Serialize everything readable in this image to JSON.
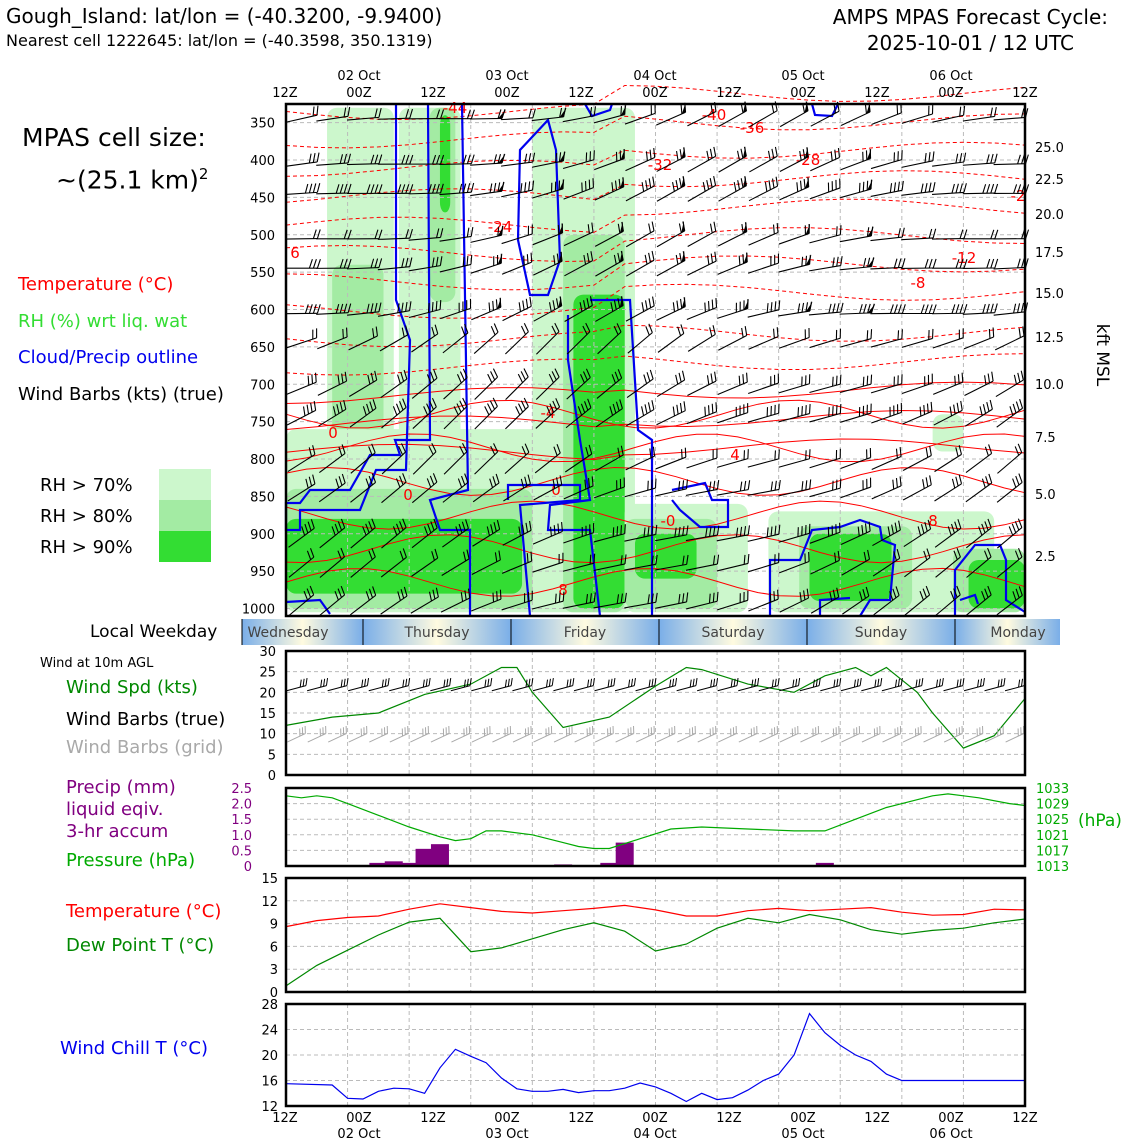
{
  "header": {
    "station_title": "Gough_Island: lat/lon = (-40.3200, -9.9400)",
    "nearest_cell": "Nearest cell 1222645: lat/lon = (-40.3598, 350.1319)",
    "cycle_line1": "AMPS MPAS Forecast Cycle:",
    "cycle_line2": "2025-10-01 / 12 UTC"
  },
  "left_panel": {
    "cell_size_line1": "MPAS cell size:",
    "cell_size_line2": "~(25.1 km)",
    "cell_size_sup": "2",
    "legend": {
      "temperature": "Temperature (°C)",
      "rh": "RH (%) wrt liq. wat",
      "cloud": "Cloud/Precip outline",
      "wind": "Wind Barbs (kts) (true)"
    },
    "rh_thresholds": [
      "RH > 70%",
      "RH > 80%",
      "RH > 90%"
    ],
    "weekday_label": "Local Weekday",
    "wind10_header": "Wind at 10m AGL",
    "wind_speed": "Wind Spd (kts)",
    "wind_barbs_true": "Wind Barbs (true)",
    "wind_barbs_grid": "Wind Barbs (grid)",
    "precip1": "Precip (mm)",
    "precip2": "liquid eqiv.",
    "precip3": "3-hr accum",
    "pressure": "Pressure (hPa)",
    "temp2": "Temperature (°C)",
    "dewpoint": "Dew Point T (°C)",
    "windchill": "Wind Chill T (°C)"
  },
  "colors": {
    "temperature": "#ff0000",
    "rh_label": "#33dd33",
    "rh70": "#ccf7cc",
    "rh80": "#a3eba3",
    "rh90": "#33dd33",
    "cloud": "#0000ee",
    "precip": "#800080",
    "pressure": "#00aa00",
    "dewpoint": "#008800",
    "windchill": "#0000ee",
    "grid_barb": "#a9a9a9"
  },
  "chart_data": [
    {
      "type": "heatmap",
      "name": "time-height cross section",
      "y_axis_label_right": "kft MSL",
      "y_ticks_hPa": [
        "350",
        "400",
        "450",
        "500",
        "550",
        "600",
        "650",
        "700",
        "750",
        "800",
        "850",
        "900",
        "950",
        "1000"
      ],
      "y_ticks_kft": [
        "25.0",
        "22.5",
        "20.0",
        "17.5",
        "15.0",
        "12.5",
        "10.0",
        "7.5",
        "5.0",
        "2.5"
      ],
      "top_ticks": [
        "12Z",
        "00Z",
        "12Z",
        "00Z",
        "12Z",
        "00Z",
        "12Z",
        "00Z",
        "12Z",
        "00Z",
        "12Z"
      ],
      "top_dates": [
        "02 Oct",
        "03 Oct",
        "04 Oct",
        "05 Oct",
        "06 Oct"
      ],
      "temperature_contour_labels": [
        "-44",
        "-40",
        "-36",
        "-32",
        "-28",
        "-24",
        "-12",
        "-8",
        "-4",
        "6",
        "4",
        "0",
        "0",
        "0",
        "-0",
        "8",
        "8",
        "-2"
      ]
    },
    {
      "type": "table",
      "name": "local weekday",
      "days": [
        "Wednesday",
        "Thursday",
        "Friday",
        "Saturday",
        "Sunday",
        "Monday"
      ]
    },
    {
      "type": "line",
      "name": "10m wind speed",
      "ylim": [
        0,
        30
      ],
      "y_ticks": [
        "0",
        "5",
        "10",
        "15",
        "20",
        "25",
        "30"
      ],
      "x_hours": [
        0,
        9,
        18,
        27,
        36,
        42,
        45,
        48,
        54,
        63,
        72,
        78,
        81,
        90,
        99,
        105,
        111,
        114,
        117,
        123,
        126,
        132,
        138,
        144
      ],
      "values": [
        12,
        14,
        15,
        19.5,
        22,
        26,
        26,
        20,
        11.5,
        14,
        21.5,
        26,
        25.5,
        22,
        20,
        24,
        26,
        24,
        26,
        20,
        15,
        6.5,
        9.5,
        18.5
      ]
    },
    {
      "type": "bar",
      "name": "precip 3-hr accum",
      "ylabel": "Precip (mm)",
      "ylim": [
        0,
        2.5
      ],
      "y_ticks": [
        "0",
        "0.5",
        "1.0",
        "1.5",
        "2.0",
        "2.5"
      ],
      "x_hours": [
        18,
        21,
        24,
        27,
        30,
        33,
        54,
        63,
        66,
        105
      ],
      "values": [
        0.1,
        0.15,
        0.1,
        0.55,
        0.7,
        0.0,
        0.05,
        0.1,
        0.75,
        0.1
      ]
    },
    {
      "type": "line",
      "name": "surface pressure",
      "ylabel": "(hPa)",
      "ylim": [
        1013,
        1033
      ],
      "y_ticks": [
        "1013",
        "1017",
        "1021",
        "1025",
        "1029",
        "1033"
      ],
      "x_hours": [
        0,
        3,
        6,
        9,
        12,
        18,
        24,
        30,
        33,
        36,
        39,
        42,
        48,
        54,
        57,
        60,
        63,
        69,
        75,
        81,
        90,
        99,
        102,
        105,
        111,
        117,
        123,
        126,
        129,
        132,
        135,
        141,
        144
      ],
      "values": [
        1031,
        1030.5,
        1031,
        1030.5,
        1029,
        1026,
        1023,
        1020.5,
        1019.5,
        1020,
        1022,
        1022,
        1021,
        1019,
        1018,
        1017.5,
        1017.5,
        1020,
        1022.5,
        1023,
        1022.5,
        1022,
        1022,
        1022,
        1025,
        1028,
        1030,
        1031,
        1031.5,
        1031,
        1030.5,
        1029,
        1028.5
      ]
    },
    {
      "type": "line",
      "name": "temperature and dew point",
      "ylim": [
        0,
        15
      ],
      "y_ticks": [
        "0",
        "3",
        "6",
        "9",
        "12"
      ],
      "x_hours": [
        0,
        6,
        12,
        18,
        24,
        30,
        36,
        42,
        48,
        54,
        60,
        66,
        72,
        78,
        84,
        90,
        96,
        102,
        108,
        114,
        120,
        126,
        132,
        138,
        144
      ],
      "series": [
        {
          "name": "Temperature (°C)",
          "values": [
            8.6,
            9.4,
            9.8,
            10.0,
            10.9,
            11.6,
            11.1,
            10.6,
            10.4,
            10.7,
            11.0,
            11.4,
            10.8,
            10.0,
            10.0,
            10.7,
            11.0,
            10.7,
            10.9,
            11.1,
            10.5,
            10.1,
            10.2,
            10.9,
            10.8
          ]
        },
        {
          "name": "Dew Point T (°C)",
          "values": [
            0.8,
            3.5,
            5.5,
            7.5,
            9.2,
            9.7,
            5.3,
            5.8,
            7.0,
            8.2,
            9.1,
            8.0,
            5.4,
            6.3,
            8.4,
            9.7,
            9.1,
            10.2,
            9.5,
            8.2,
            7.6,
            8.1,
            8.4,
            9.1,
            9.6
          ]
        }
      ]
    },
    {
      "type": "line",
      "name": "wind chill",
      "ylim": [
        12,
        28
      ],
      "y_ticks": [
        "12",
        "16",
        "20",
        "24",
        "28"
      ],
      "x_labels": [
        "12Z",
        "00Z",
        "12Z",
        "00Z",
        "12Z",
        "00Z",
        "12Z",
        "00Z",
        "12Z",
        "00Z",
        "12Z"
      ],
      "x_dates": [
        "02 Oct",
        "03 Oct",
        "04 Oct",
        "05 Oct",
        "06 Oct"
      ],
      "x_hours": [
        0,
        9,
        12,
        15,
        18,
        21,
        24,
        27,
        30,
        33,
        36,
        39,
        42,
        45,
        48,
        51,
        54,
        57,
        60,
        63,
        66,
        69,
        72,
        75,
        78,
        81,
        84,
        87,
        90,
        93,
        96,
        99,
        102,
        105,
        108,
        111,
        114,
        117,
        120,
        123,
        126,
        129,
        132,
        135,
        138,
        141,
        144
      ],
      "values": [
        15.5,
        15.3,
        13.2,
        13.1,
        14.3,
        14.8,
        14.7,
        14.0,
        18.0,
        20.9,
        19.8,
        18.8,
        16.4,
        14.7,
        14.3,
        14.3,
        14.6,
        14.1,
        14.4,
        14.4,
        14.8,
        15.6,
        15.0,
        14.0,
        12.7,
        14.0,
        13.0,
        13.3,
        14.5,
        16.0,
        17.0,
        20.0,
        26.5,
        23.5,
        21.5,
        20.0,
        19.0,
        17.0,
        16.0,
        16.0,
        16.0,
        16.0,
        16.0,
        16.0,
        16.0,
        16.0,
        16.0
      ]
    }
  ]
}
